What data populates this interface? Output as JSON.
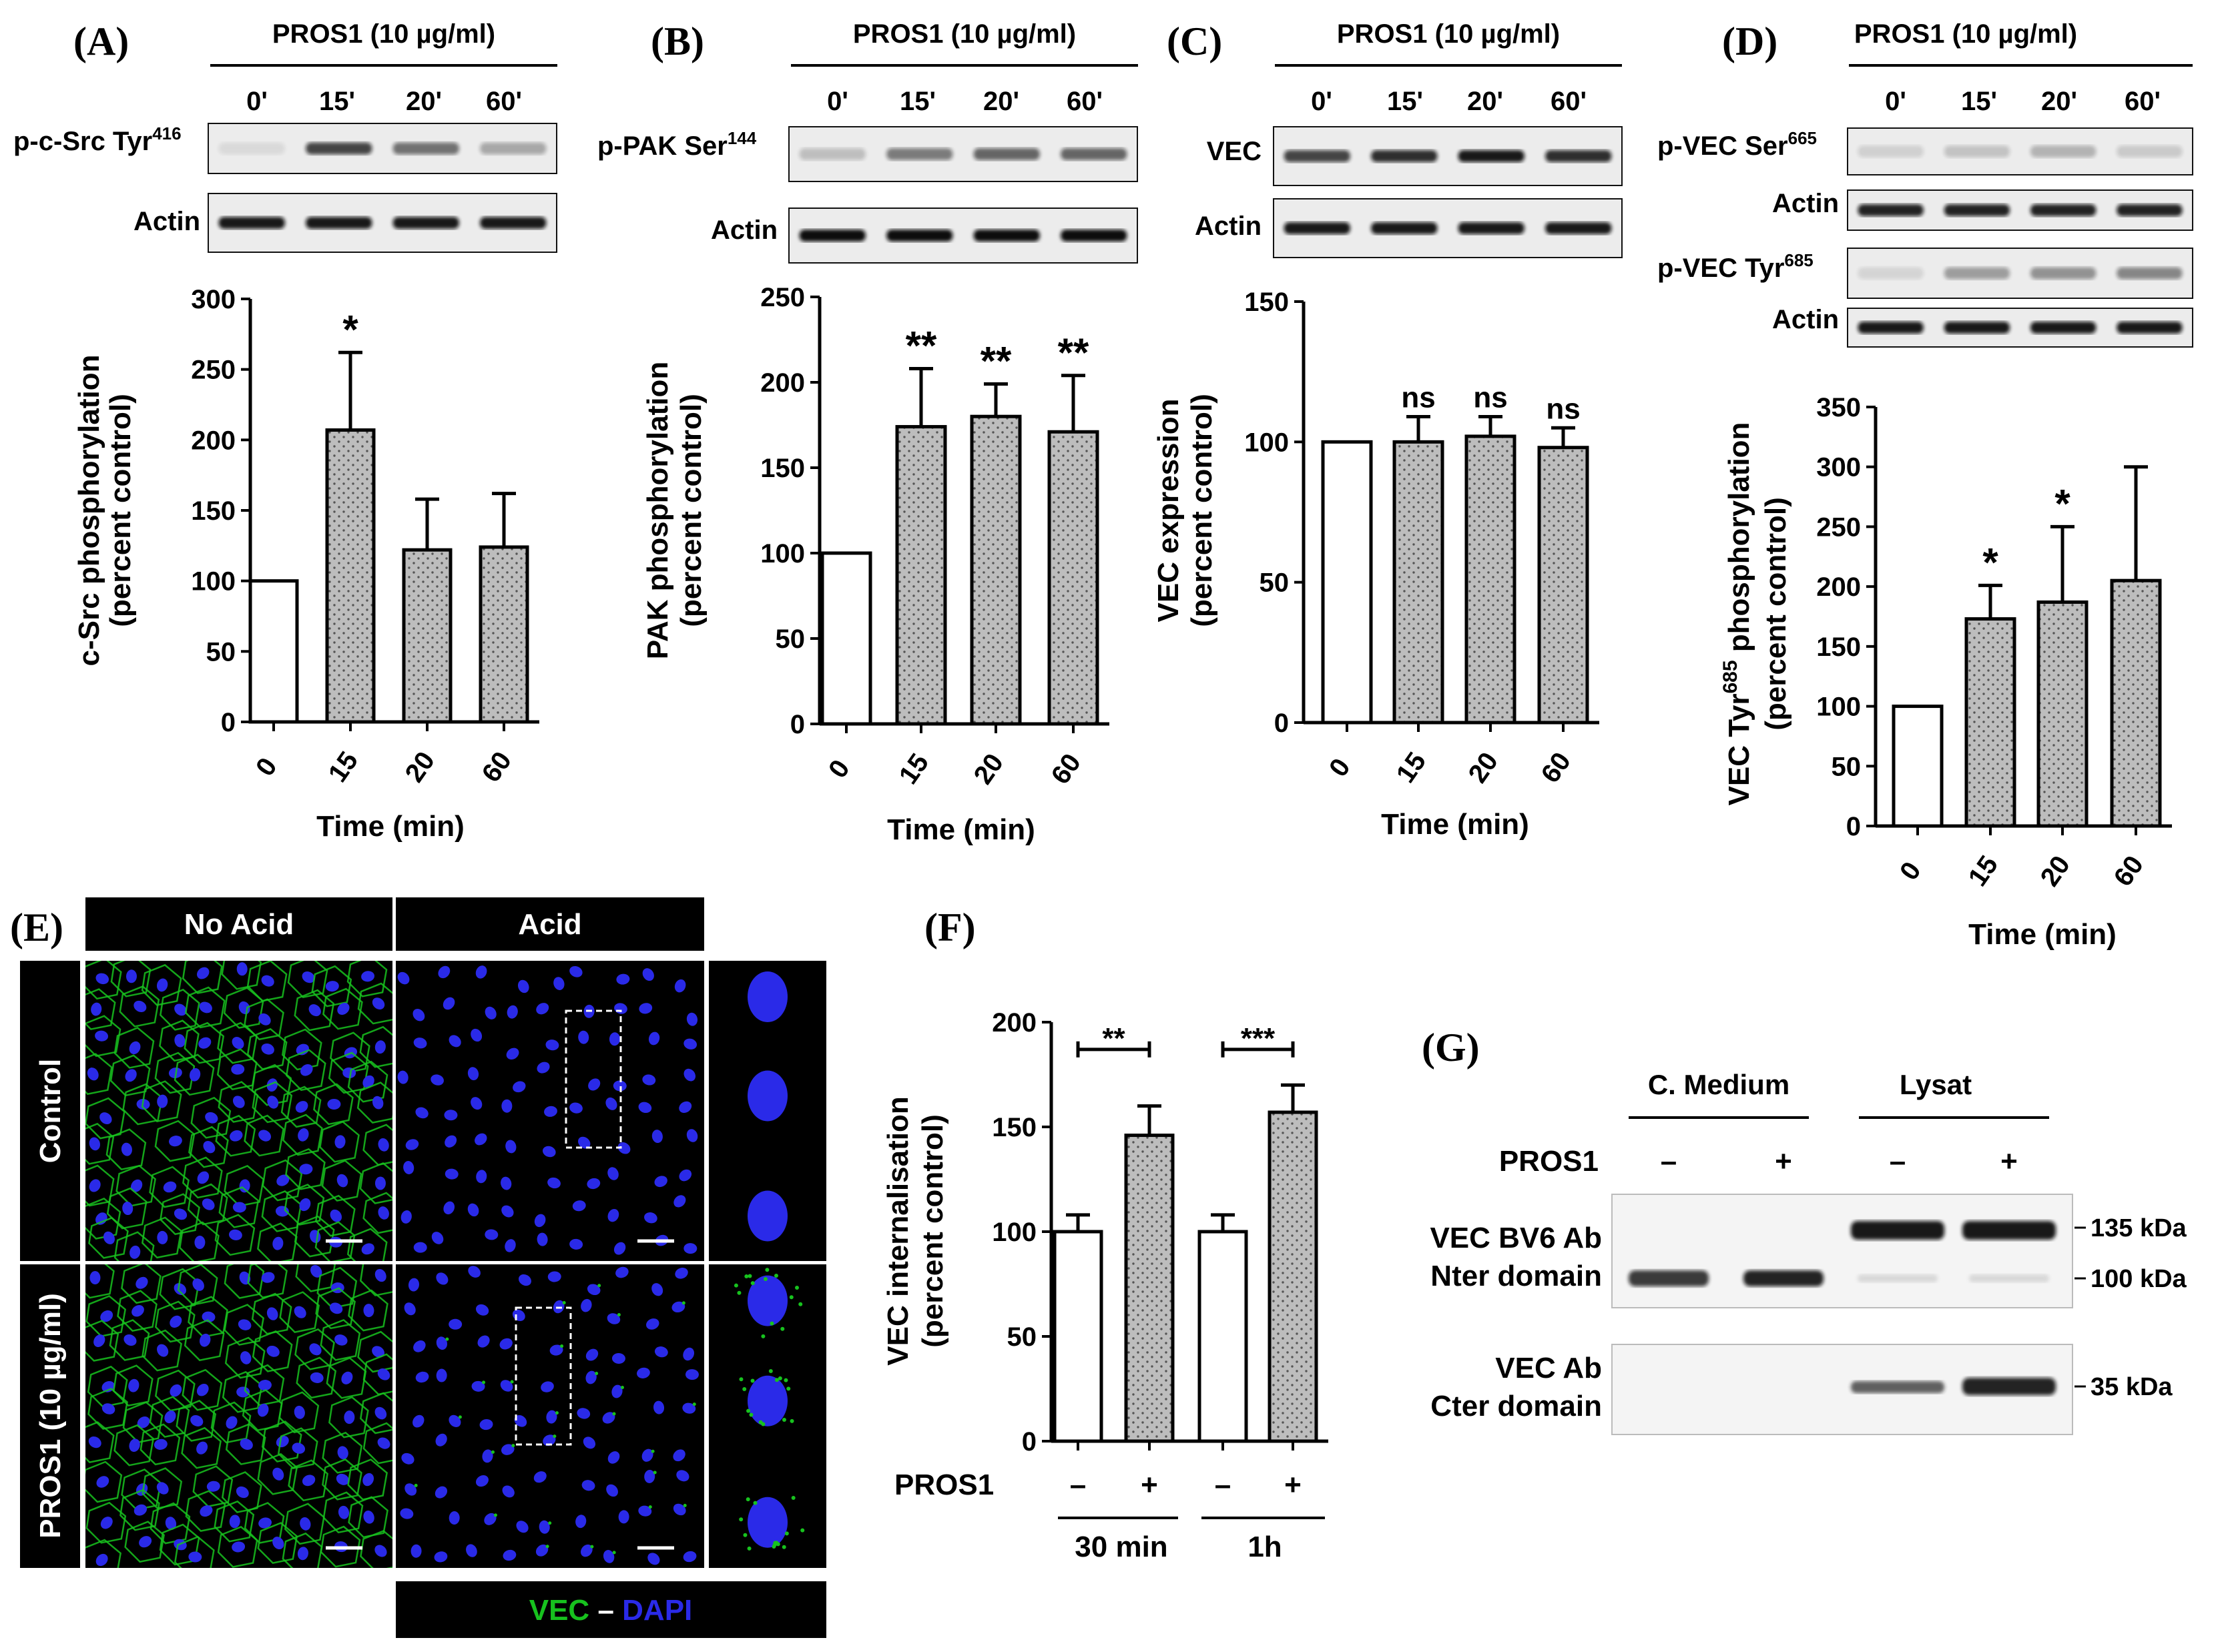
{
  "colors": {
    "bar_control": "#ffffff",
    "bar_treated": "#bdbdbd",
    "vec_green": "#17c21e",
    "dapi_blue": "#2a2ae8",
    "blot_band": "#1a1a1a"
  },
  "blot_header": "PROS1 (10 µg/ml)",
  "time_labels": [
    "0'",
    "15'",
    "20'",
    "60'"
  ],
  "panels": {
    "A": {
      "letter": "(A)",
      "blot_rows": [
        "p-c-Src Tyr",
        "Actin"
      ],
      "blot_sup": "416"
    },
    "B": {
      "letter": "(B)",
      "blot_rows": [
        "p-PAK Ser",
        "Actin"
      ],
      "blot_sup": "144"
    },
    "C": {
      "letter": "(C)",
      "blot_rows": [
        "VEC",
        "Actin"
      ]
    },
    "D": {
      "letter": "(D)",
      "blot_rows": [
        "p-VEC Ser",
        "Actin",
        "p-VEC Tyr",
        "Actin"
      ],
      "blot_sup": [
        "665",
        "685"
      ]
    },
    "E": {
      "letter": "(E)",
      "col_headers": [
        "No Acid",
        "Acid"
      ],
      "row_headers": [
        "Control",
        "PROS1 (10 µg/ml)"
      ],
      "legend_green": "VEC",
      "legend_dash": " – ",
      "legend_blue": "DAPI"
    },
    "F": {
      "letter": "(F)",
      "pros_label": "PROS1",
      "signs": [
        "–",
        "+",
        "–",
        "+"
      ],
      "groups": [
        "30 min",
        "1h"
      ]
    },
    "G": {
      "letter": "(G)",
      "col_groups": [
        "C. Medium",
        "Lysat"
      ],
      "pros_label": "PROS1",
      "signs": [
        "–",
        "+",
        "–",
        "+"
      ],
      "row_labels": [
        "VEC BV6 Ab",
        "Nter domain",
        "VEC Ab",
        "Cter domain"
      ],
      "markers": [
        "135 kDa",
        "100 kDa",
        "35 kDa"
      ]
    }
  },
  "chart_data": [
    {
      "panel": "A",
      "type": "bar",
      "categories": [
        "0",
        "15",
        "20",
        "60"
      ],
      "values": [
        100,
        207,
        122,
        124
      ],
      "errors": [
        0,
        55,
        36,
        38
      ],
      "significance": [
        "",
        "*",
        "",
        ""
      ],
      "ylabel": "c-Src phosphorylation",
      "ylabel2": "(percent control)",
      "xlabel": "Time (min)",
      "ylim": [
        0,
        300
      ],
      "yticks": [
        0,
        50,
        100,
        150,
        200,
        250,
        300
      ]
    },
    {
      "panel": "B",
      "type": "bar",
      "categories": [
        "0",
        "15",
        "20",
        "60"
      ],
      "values": [
        100,
        174,
        180,
        171
      ],
      "errors": [
        0,
        34,
        19,
        33
      ],
      "significance": [
        "",
        "**",
        "**",
        "**"
      ],
      "ylabel": "PAK phosphorylation",
      "ylabel2": "(percent control)",
      "xlabel": "Time (min)",
      "ylim": [
        0,
        250
      ],
      "yticks": [
        0,
        50,
        100,
        150,
        200,
        250
      ]
    },
    {
      "panel": "C",
      "type": "bar",
      "categories": [
        "0",
        "15",
        "20",
        "60"
      ],
      "values": [
        100,
        100,
        102,
        98
      ],
      "errors": [
        0,
        9,
        7,
        7
      ],
      "significance": [
        "",
        "ns",
        "ns",
        "ns"
      ],
      "ylabel": "VEC expression",
      "ylabel2": "(percent control)",
      "xlabel": "Time (min)",
      "ylim": [
        0,
        150
      ],
      "yticks": [
        0,
        50,
        100,
        150
      ]
    },
    {
      "panel": "D",
      "type": "bar",
      "categories": [
        "0",
        "15",
        "20",
        "60"
      ],
      "values": [
        100,
        173,
        187,
        205
      ],
      "errors": [
        0,
        28,
        63,
        95
      ],
      "significance": [
        "",
        "*",
        "*",
        ""
      ],
      "ylabel": "VEC Tyr",
      "ylabel_sup": "685",
      "ylabel_tail": " phosphorylation",
      "ylabel2": "(percent control)",
      "xlabel": "Time (min)",
      "ylim": [
        0,
        350
      ],
      "yticks": [
        0,
        50,
        100,
        150,
        200,
        250,
        300,
        350
      ]
    },
    {
      "panel": "F",
      "type": "bar",
      "categories": [
        "30 min –",
        "30 min +",
        "1h –",
        "1h +"
      ],
      "values": [
        100,
        146,
        100,
        157
      ],
      "errors": [
        8,
        14,
        8,
        13
      ],
      "significance": [
        "**",
        "***"
      ],
      "ylabel": "VEC internalisation",
      "ylabel2": "(percent control)",
      "xlabel": "",
      "ylim": [
        0,
        200
      ],
      "yticks": [
        0,
        50,
        100,
        150,
        200
      ]
    }
  ]
}
